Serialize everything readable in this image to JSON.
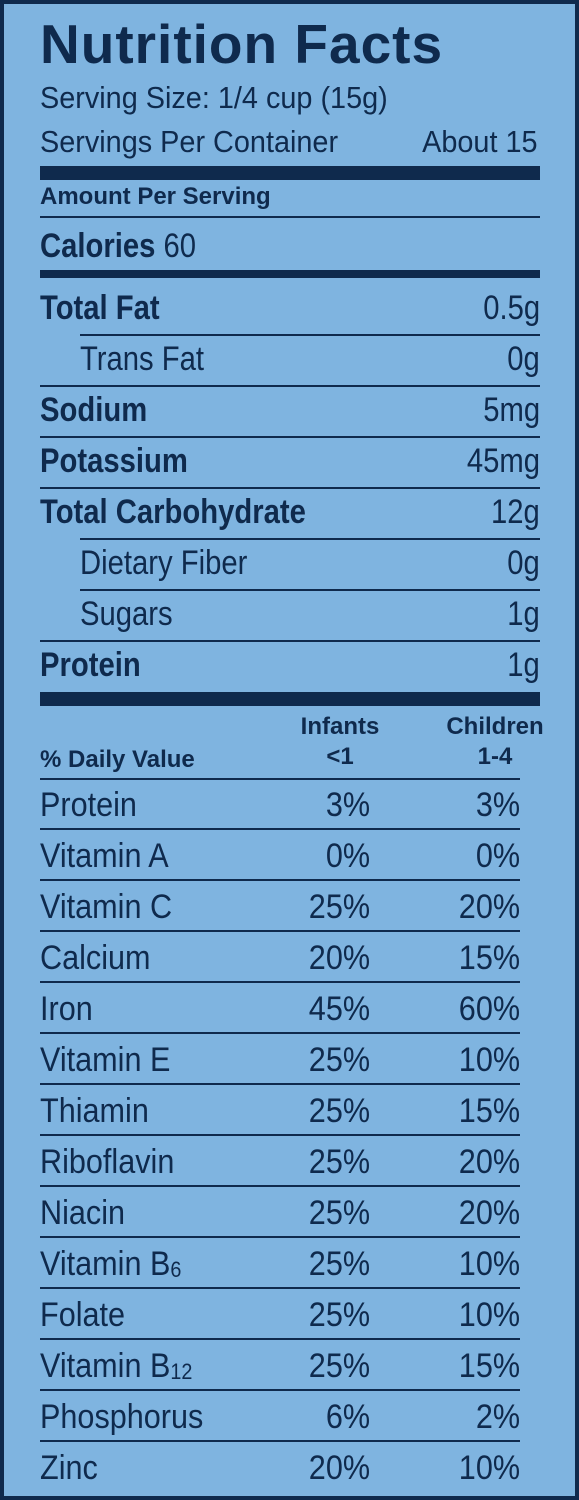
{
  "label": {
    "title": "Nutrition Facts",
    "serving_size": "Serving Size: 1/4 cup (15g)",
    "servings_label": "Servings Per Container",
    "servings_value": "About 15",
    "amount_per_serving": "Amount Per Serving",
    "calories_label": "Calories",
    "calories_value": "60",
    "nutrients": [
      {
        "name": "Total Fat",
        "value": "0.5g",
        "bold": true,
        "indent": false
      },
      {
        "name": "Trans Fat",
        "value": "0g",
        "bold": false,
        "indent": true
      },
      {
        "name": "Sodium",
        "value": "5mg",
        "bold": true,
        "indent": false
      },
      {
        "name": "Potassium",
        "value": "45mg",
        "bold": true,
        "indent": false
      },
      {
        "name": "Total Carbohydrate",
        "value": "12g",
        "bold": true,
        "indent": false
      },
      {
        "name": "Dietary Fiber",
        "value": "0g",
        "bold": false,
        "indent": true
      },
      {
        "name": "Sugars",
        "value": "1g",
        "bold": false,
        "indent": true
      },
      {
        "name": "Protein",
        "value": "1g",
        "bold": true,
        "indent": false
      }
    ],
    "daily_value_label": "% Daily Value",
    "col1_line1": "Infants",
    "col1_line2": "<1",
    "col2_line1": "Children",
    "col2_line2": "1-4",
    "vitamins": [
      {
        "name": "Protein",
        "sub": "",
        "infants": "3%",
        "children": "3%"
      },
      {
        "name": "Vitamin A",
        "sub": "",
        "infants": "0%",
        "children": "0%"
      },
      {
        "name": "Vitamin C",
        "sub": "",
        "infants": "25%",
        "children": "20%"
      },
      {
        "name": "Calcium",
        "sub": "",
        "infants": "20%",
        "children": "15%"
      },
      {
        "name": "Iron",
        "sub": "",
        "infants": "45%",
        "children": "60%"
      },
      {
        "name": "Vitamin E",
        "sub": "",
        "infants": "25%",
        "children": "10%"
      },
      {
        "name": "Thiamin",
        "sub": "",
        "infants": "25%",
        "children": "15%"
      },
      {
        "name": "Riboflavin",
        "sub": "",
        "infants": "25%",
        "children": "20%"
      },
      {
        "name": "Niacin",
        "sub": "",
        "infants": "25%",
        "children": "20%"
      },
      {
        "name": "Vitamin B",
        "sub": "6",
        "infants": "25%",
        "children": "10%"
      },
      {
        "name": "Folate",
        "sub": "",
        "infants": "25%",
        "children": "10%"
      },
      {
        "name": "Vitamin B",
        "sub": "12",
        "infants": "25%",
        "children": "15%"
      },
      {
        "name": "Phosphorus",
        "sub": "",
        "infants": "6%",
        "children": "2%"
      },
      {
        "name": "Zinc",
        "sub": "",
        "infants": "20%",
        "children": "10%"
      }
    ]
  },
  "colors": {
    "background": "#7fb4e0",
    "ink": "#0f2a4d"
  }
}
